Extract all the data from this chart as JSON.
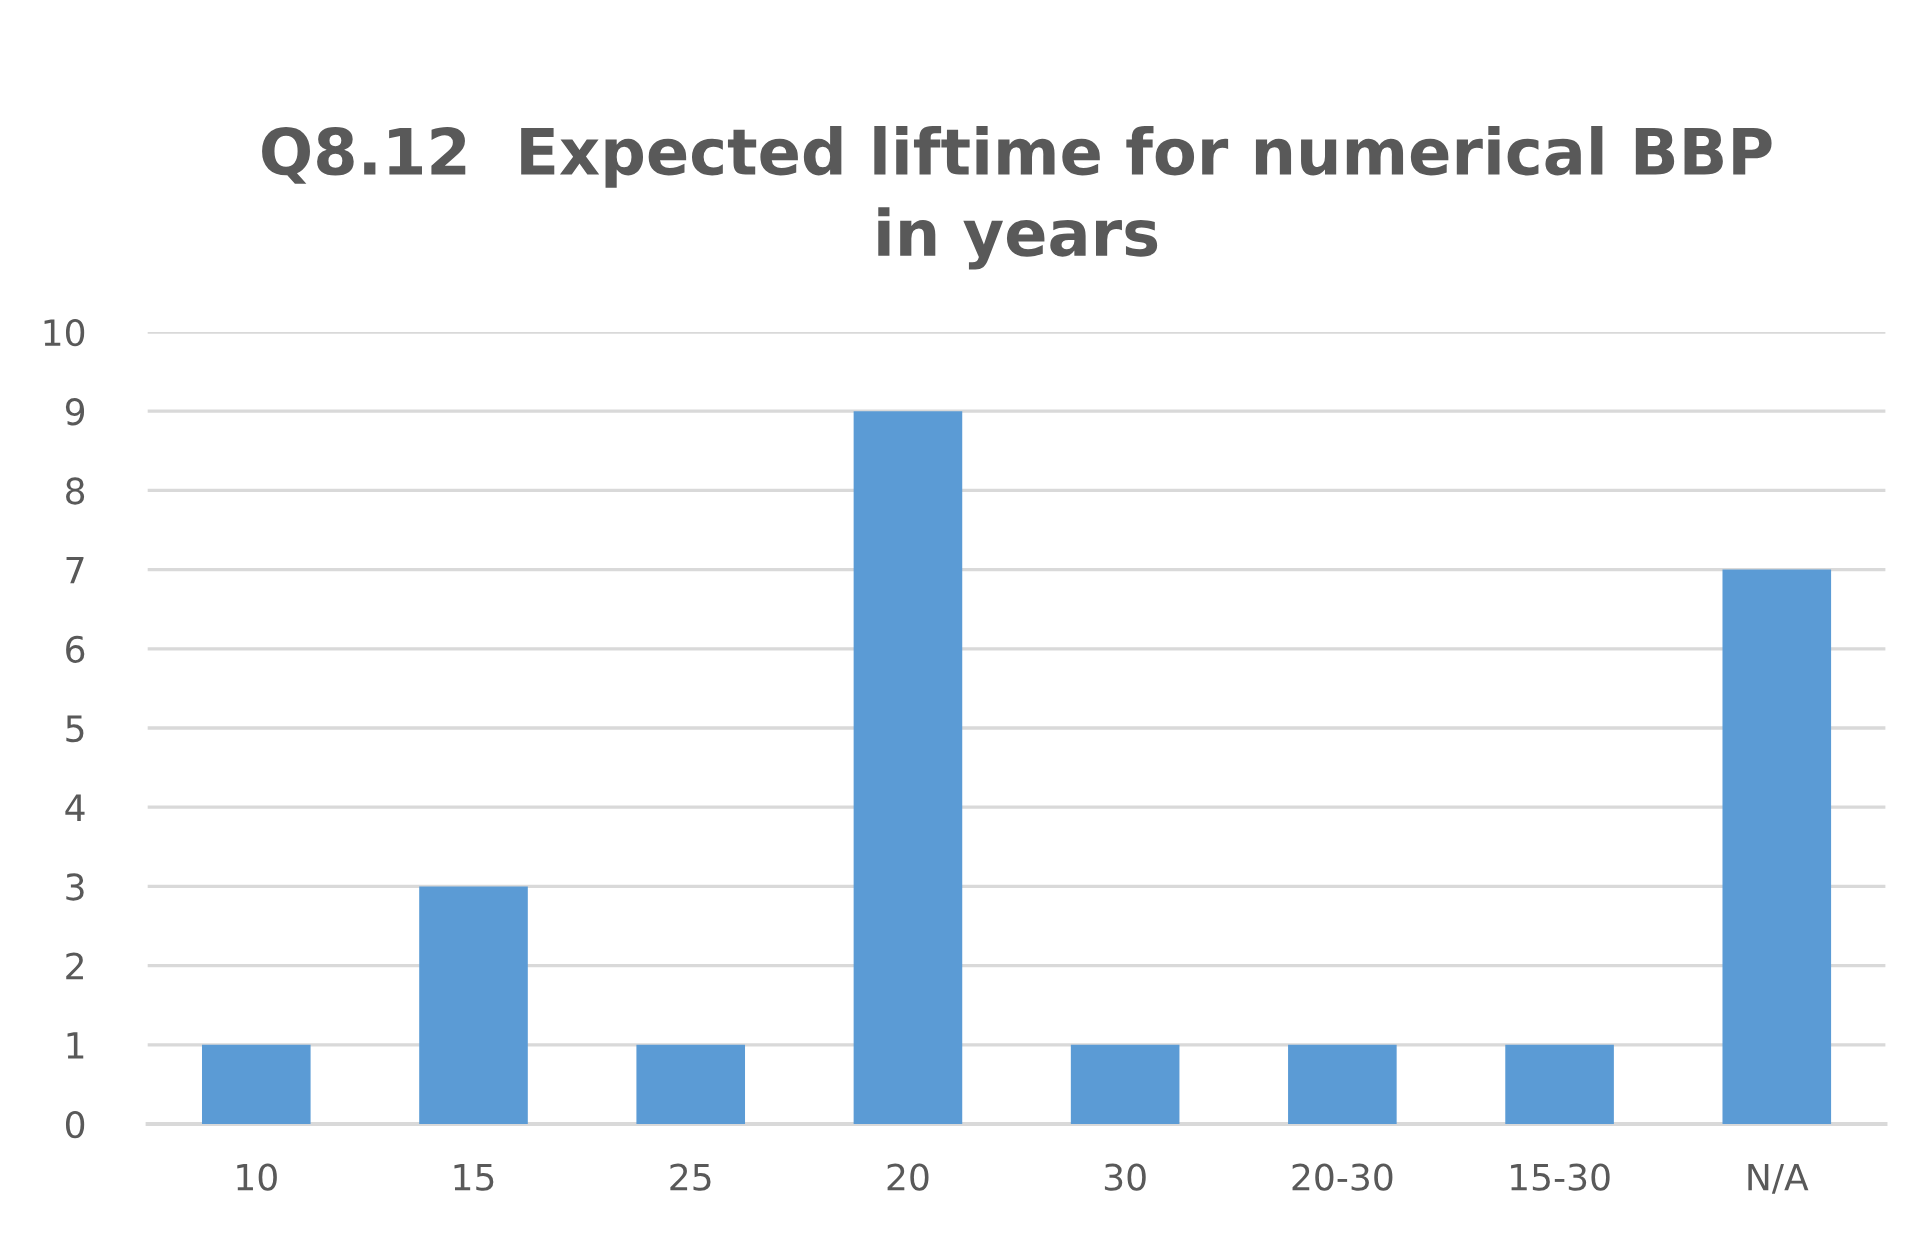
{
  "chart_data": {
    "type": "bar",
    "title": "Q8.12  Expected liftime for numerical BBP\nin years",
    "categories": [
      "10",
      "15",
      "25",
      "20",
      "30",
      "20-30",
      "15-30",
      "N/A"
    ],
    "values": [
      1,
      3,
      1,
      9,
      1,
      1,
      1,
      7
    ],
    "color": "#5b9bd5",
    "ylim": [
      0,
      10
    ],
    "yticks": [
      0,
      1,
      2,
      3,
      4,
      5,
      6,
      7,
      8,
      9,
      10
    ],
    "grid": "y",
    "legend": false
  }
}
